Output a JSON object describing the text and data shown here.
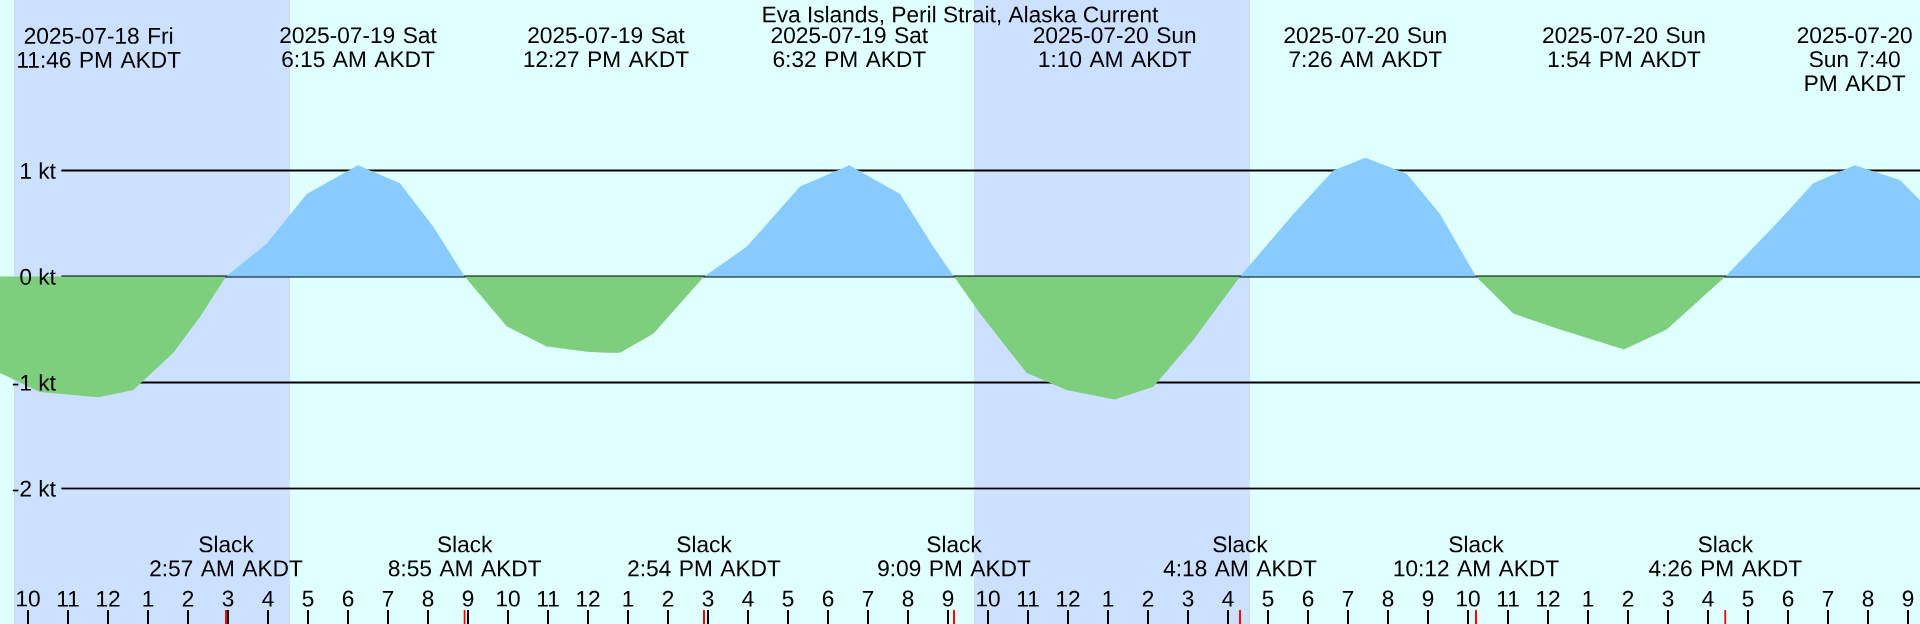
{
  "chart_data": {
    "type": "area",
    "title": "Eva Islands, Peril Strait, Alaska Current",
    "xlim": [
      "2025-07-18T21:18",
      "2025-07-20T21:18"
    ],
    "ylim": [
      -3.28,
      2.61
    ],
    "grid": "y",
    "yticks": [
      {
        "value": 1,
        "label": "1 kt"
      },
      {
        "value": 0,
        "label": "0 kt"
      },
      {
        "value": -1,
        "label": "-1 kt"
      },
      {
        "value": -2,
        "label": "-2 kt"
      }
    ],
    "xticks": [
      {
        "value": "2025-07-18T22:00",
        "label": "10"
      },
      {
        "value": "2025-07-18T23:00",
        "label": "11"
      },
      {
        "value": "2025-07-19T00:00",
        "label": "12"
      },
      {
        "value": "2025-07-19T01:00",
        "label": "1"
      },
      {
        "value": "2025-07-19T02:00",
        "label": "2"
      },
      {
        "value": "2025-07-19T03:00",
        "label": "3"
      },
      {
        "value": "2025-07-19T04:00",
        "label": "4"
      },
      {
        "value": "2025-07-19T05:00",
        "label": "5"
      },
      {
        "value": "2025-07-19T06:00",
        "label": "6"
      },
      {
        "value": "2025-07-19T07:00",
        "label": "7"
      },
      {
        "value": "2025-07-19T08:00",
        "label": "8"
      },
      {
        "value": "2025-07-19T09:00",
        "label": "9"
      },
      {
        "value": "2025-07-19T10:00",
        "label": "10"
      },
      {
        "value": "2025-07-19T11:00",
        "label": "11"
      },
      {
        "value": "2025-07-19T12:00",
        "label": "12"
      },
      {
        "value": "2025-07-19T13:00",
        "label": "1"
      },
      {
        "value": "2025-07-19T14:00",
        "label": "2"
      },
      {
        "value": "2025-07-19T15:00",
        "label": "3"
      },
      {
        "value": "2025-07-19T16:00",
        "label": "4"
      },
      {
        "value": "2025-07-19T17:00",
        "label": "5"
      },
      {
        "value": "2025-07-19T18:00",
        "label": "6"
      },
      {
        "value": "2025-07-19T19:00",
        "label": "7"
      },
      {
        "value": "2025-07-19T20:00",
        "label": "8"
      },
      {
        "value": "2025-07-19T21:00",
        "label": "9"
      },
      {
        "value": "2025-07-19T22:00",
        "label": "10"
      },
      {
        "value": "2025-07-19T23:00",
        "label": "11"
      },
      {
        "value": "2025-07-20T00:00",
        "label": "12"
      },
      {
        "value": "2025-07-20T01:00",
        "label": "1"
      },
      {
        "value": "2025-07-20T02:00",
        "label": "2"
      },
      {
        "value": "2025-07-20T03:00",
        "label": "3"
      },
      {
        "value": "2025-07-20T04:00",
        "label": "4"
      },
      {
        "value": "2025-07-20T05:00",
        "label": "5"
      },
      {
        "value": "2025-07-20T06:00",
        "label": "6"
      },
      {
        "value": "2025-07-20T07:00",
        "label": "7"
      },
      {
        "value": "2025-07-20T08:00",
        "label": "8"
      },
      {
        "value": "2025-07-20T09:00",
        "label": "9"
      },
      {
        "value": "2025-07-20T10:00",
        "label": "10"
      },
      {
        "value": "2025-07-20T11:00",
        "label": "11"
      },
      {
        "value": "2025-07-20T12:00",
        "label": "12"
      },
      {
        "value": "2025-07-20T13:00",
        "label": "1"
      },
      {
        "value": "2025-07-20T14:00",
        "label": "2"
      },
      {
        "value": "2025-07-20T15:00",
        "label": "3"
      },
      {
        "value": "2025-07-20T16:00",
        "label": "4"
      },
      {
        "value": "2025-07-20T17:00",
        "label": "5"
      },
      {
        "value": "2025-07-20T18:00",
        "label": "6"
      },
      {
        "value": "2025-07-20T19:00",
        "label": "7"
      },
      {
        "value": "2025-07-20T20:00",
        "label": "8"
      },
      {
        "value": "2025-07-20T21:00",
        "label": "9"
      }
    ],
    "x2lim": [
      "2025-07-18T21:18",
      "2025-07-20T21:18"
    ],
    "x2ticks": [
      {
        "value": "2025-07-18T23:46",
        "label": "2025-07-18 Fri 11:46 PM AKDT"
      },
      {
        "value": "2025-07-19T06:15",
        "label": "2025-07-19 Sat 6:15 AM AKDT"
      },
      {
        "value": "2025-07-19T12:27",
        "label": "2025-07-19 Sat 12:27 PM AKDT"
      },
      {
        "value": "2025-07-19T18:32",
        "label": "2025-07-19 Sat 6:32 PM AKDT"
      },
      {
        "value": "2025-07-20T01:10",
        "label": "2025-07-20 Sun 1:10 AM AKDT"
      },
      {
        "value": "2025-07-20T07:26",
        "label": "2025-07-20 Sun 7:26 AM AKDT"
      },
      {
        "value": "2025-07-20T13:54",
        "label": "2025-07-20 Sun 1:54 PM AKDT"
      },
      {
        "value": "2025-07-20T19:40",
        "label": "2025-07-20 Sun 7:40 PM AKDT"
      }
    ],
    "bands": [
      {
        "axis": "x",
        "from": "2025-07-18T21:39",
        "to": "2025-07-19T04:33",
        "color": "#cce0ff"
      },
      {
        "axis": "x",
        "from": "2025-07-19T21:39",
        "to": "2025-07-20T04:33",
        "color": "#cce0ff"
      }
    ],
    "series": [
      {
        "color": "#7dcf7d",
        "x": [
          "2025-07-18T21:18",
          "2025-07-18T22:18",
          "2025-07-18T23:28",
          "2025-07-18T23:46",
          "2025-07-19T00:38",
          "2025-07-19T01:38",
          "2025-07-19T02:18",
          "2025-07-19T02:57",
          "2025-07-19T08:55",
          "2025-07-19T09:58",
          "2025-07-19T10:58",
          "2025-07-19T11:58",
          "2025-07-19T12:27",
          "2025-07-19T12:48",
          "2025-07-19T13:38",
          "2025-07-19T14:54",
          "2025-07-19T21:09",
          "2025-07-19T21:48",
          "2025-07-19T22:58",
          "2025-07-19T23:58",
          "2025-07-20T01:10",
          "2025-07-20T02:08",
          "2025-07-20T03:08",
          "2025-07-20T04:18",
          "2025-07-20T10:12",
          "2025-07-20T11:08",
          "2025-07-20T12:18",
          "2025-07-20T13:54",
          "2025-07-20T14:58",
          "2025-07-20T16:26"
        ],
        "values": [
          -0.91,
          -1.09,
          -1.13,
          -1.14,
          -1.07,
          -0.72,
          -0.38,
          0,
          0,
          -0.47,
          -0.66,
          -0.71,
          -0.72,
          -0.72,
          -0.54,
          0,
          0,
          -0.35,
          -0.91,
          -1.07,
          -1.16,
          -1.04,
          -0.6,
          0,
          0,
          -0.35,
          -0.5,
          -0.69,
          -0.5,
          0
        ]
      },
      {
        "color": "#88ccff",
        "x": [
          "2025-07-19T02:57",
          "2025-07-19T03:58",
          "2025-07-19T04:58",
          "2025-07-19T06:15",
          "2025-07-19T07:18",
          "2025-07-19T08:08",
          "2025-07-19T08:55",
          "2025-07-19T14:54",
          "2025-07-19T15:58",
          "2025-07-19T17:18",
          "2025-07-19T18:32",
          "2025-07-19T19:48",
          "2025-07-19T20:38",
          "2025-07-19T21:09",
          "2025-07-20T04:18",
          "2025-07-20T05:38",
          "2025-07-20T06:38",
          "2025-07-20T07:26",
          "2025-07-20T08:28",
          "2025-07-20T09:18",
          "2025-07-20T10:12",
          "2025-07-20T16:26",
          "2025-07-20T17:38",
          "2025-07-20T18:38",
          "2025-07-20T19:40",
          "2025-07-20T20:48",
          "2025-07-20T21:18"
        ],
        "values": [
          0,
          0.31,
          0.78,
          1.05,
          0.88,
          0.47,
          0,
          0,
          0.28,
          0.85,
          1.05,
          0.78,
          0.28,
          0,
          0,
          0.59,
          1.0,
          1.12,
          0.97,
          0.59,
          0,
          0,
          0.47,
          0.88,
          1.05,
          0.91,
          0.72
        ]
      }
    ],
    "annotations": [
      "Slack 2:57 AM AKDT",
      "Slack 8:55 AM AKDT",
      "Slack 2:54 PM AKDT",
      "Slack 9:09 PM AKDT",
      "Slack 4:18 AM AKDT",
      "Slack 10:12 AM AKDT",
      "Slack 4:26 PM AKDT"
    ]
  }
}
